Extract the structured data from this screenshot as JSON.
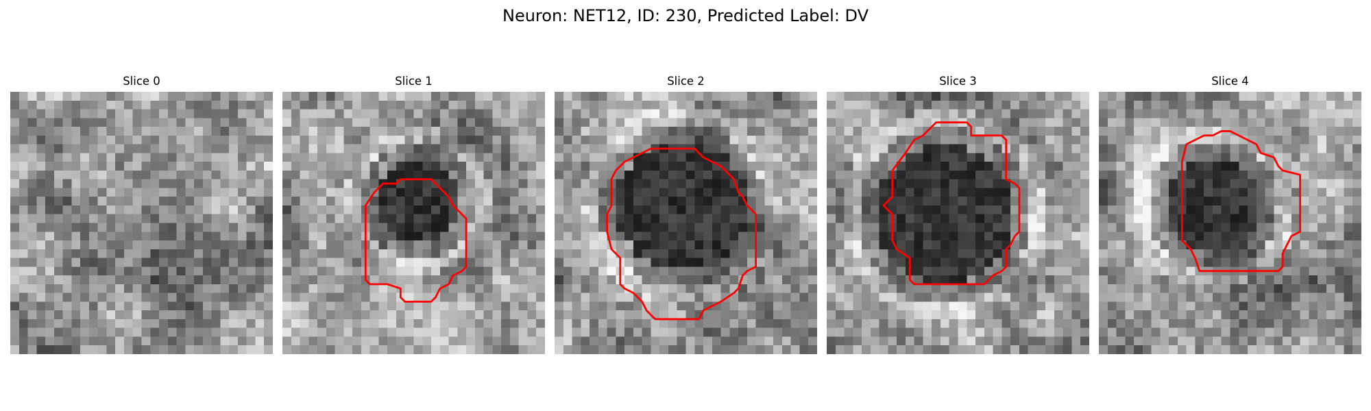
{
  "figure": {
    "title": "Neuron: NET12, ID: 230, Predicted Label: DV"
  },
  "panels": [
    {
      "title": "Slice 0",
      "has_contour": false,
      "dark_blob": null
    },
    {
      "title": "Slice 1",
      "has_contour": true,
      "dark_blob": {
        "cx": 15.5,
        "cy": 12.5,
        "r": 4.5
      }
    },
    {
      "title": "Slice 2",
      "has_contour": true,
      "dark_blob": {
        "cx": 14.5,
        "cy": 13.0,
        "r": 7.5
      }
    },
    {
      "title": "Slice 3",
      "has_contour": true,
      "dark_blob": {
        "cx": 13.5,
        "cy": 14.0,
        "r": 8.0
      }
    },
    {
      "title": "Slice 4",
      "has_contour": true,
      "dark_blob": {
        "cx": 13.0,
        "cy": 13.0,
        "r": 5.5
      }
    }
  ],
  "style": {
    "contour_color": "#ff0000",
    "colormap": "grayscale"
  }
}
